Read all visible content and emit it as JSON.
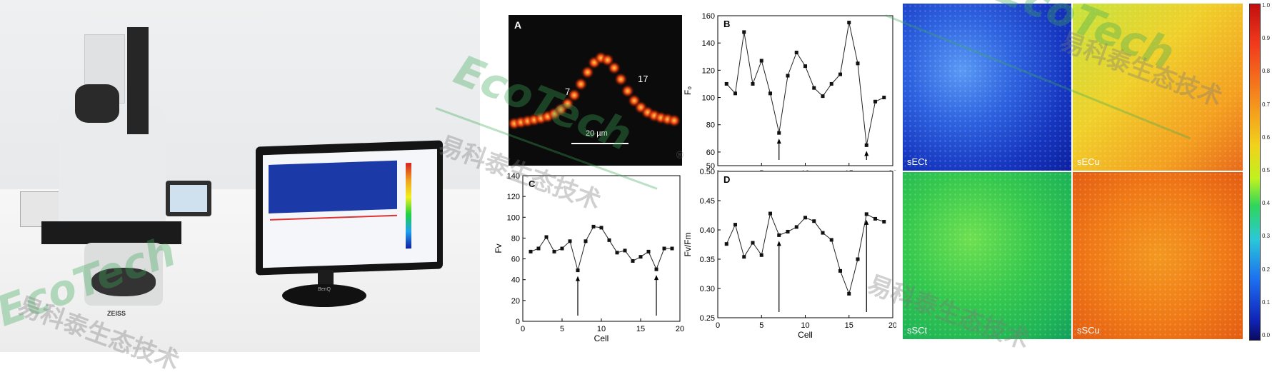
{
  "photo": {
    "monitor_brand": "BenQ",
    "microscope_brand": "ZEISS"
  },
  "panel_a": {
    "letter": "A",
    "cell_label_left": "7",
    "cell_label_right": "17",
    "scalebar_label": "20 µm"
  },
  "chart_data": [
    {
      "type": "line",
      "panel": "B",
      "xlabel": "",
      "ylabel": "F₀",
      "xlim": [
        0,
        20
      ],
      "ylim": [
        50,
        160
      ],
      "xticks": [
        0,
        5,
        10,
        15,
        20
      ],
      "yticks": [
        50,
        60,
        80,
        100,
        120,
        140,
        160
      ],
      "x": [
        1,
        2,
        3,
        4,
        5,
        6,
        7,
        8,
        9,
        10,
        11,
        12,
        13,
        14,
        15,
        16,
        17,
        18,
        19
      ],
      "values": [
        110,
        103,
        148,
        110,
        127,
        103,
        74,
        116,
        133,
        123,
        107,
        101,
        110,
        117,
        155,
        125,
        65,
        97,
        100
      ],
      "arrows_at": [
        7,
        17
      ]
    },
    {
      "type": "line",
      "panel": "C",
      "xlabel": "Cell",
      "ylabel": "Fv",
      "xlim": [
        0,
        20
      ],
      "ylim": [
        0,
        140
      ],
      "xticks": [
        0,
        5,
        10,
        15,
        20
      ],
      "yticks": [
        0,
        20,
        40,
        60,
        80,
        100,
        120,
        140
      ],
      "x": [
        1,
        2,
        3,
        4,
        5,
        6,
        7,
        8,
        9,
        10,
        11,
        12,
        13,
        14,
        15,
        16,
        17,
        18,
        19
      ],
      "values": [
        67,
        70,
        81,
        67,
        70,
        77,
        49,
        77,
        91,
        90,
        78,
        66,
        68,
        58,
        62,
        67,
        50,
        70,
        70
      ],
      "arrows_at": [
        7,
        17
      ]
    },
    {
      "type": "line",
      "panel": "D",
      "xlabel": "Cell",
      "ylabel": "Fv/Fm",
      "xlim": [
        0,
        20
      ],
      "ylim": [
        0.25,
        0.5
      ],
      "xticks": [
        0,
        5,
        10,
        15,
        20
      ],
      "yticks": [
        0.25,
        0.3,
        0.35,
        0.4,
        0.45,
        0.5
      ],
      "x": [
        1,
        2,
        3,
        4,
        5,
        6,
        7,
        8,
        9,
        10,
        11,
        12,
        13,
        14,
        15,
        16,
        17,
        18,
        19
      ],
      "values": [
        0.376,
        0.409,
        0.354,
        0.378,
        0.357,
        0.428,
        0.391,
        0.397,
        0.405,
        0.421,
        0.415,
        0.395,
        0.383,
        0.33,
        0.291,
        0.35,
        0.427,
        0.419,
        0.414
      ],
      "arrows_at": [
        7,
        17
      ]
    }
  ],
  "heatmaps": {
    "top_left": "sECt",
    "top_right": "sECu",
    "bottom_left": "sSCt",
    "bottom_right": "sSCu"
  },
  "colorbar": {
    "ticks": [
      "1.0",
      "0.9",
      "0.8",
      "0.7",
      "0.6",
      "0.5",
      "0.4",
      "0.3",
      "0.2",
      "0.1",
      "0.0"
    ]
  },
  "watermark": {
    "chinese": "易科泰生态技术",
    "latin": "EcoTech",
    "registered": "®"
  }
}
